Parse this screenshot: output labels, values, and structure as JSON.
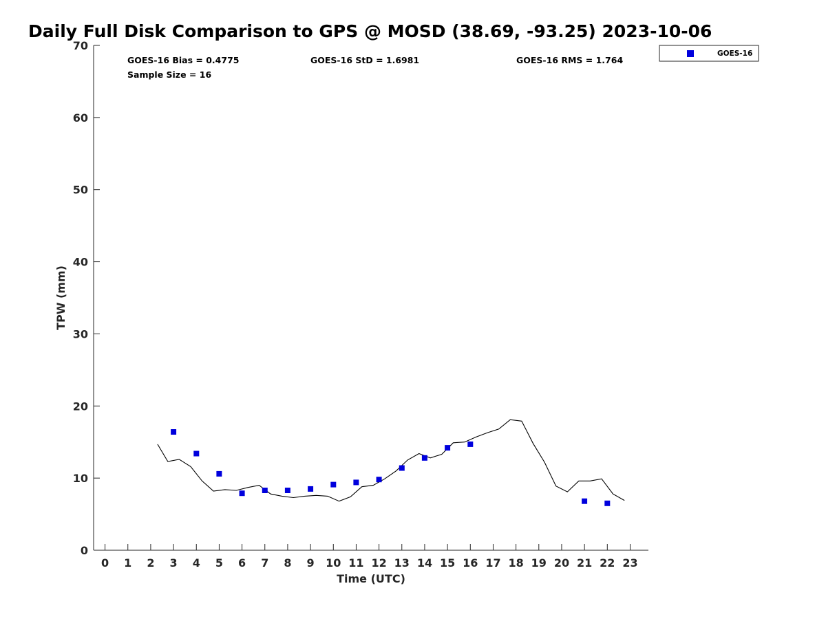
{
  "chart_data": {
    "type": "scatter",
    "title": "Daily Full Disk Comparison to GPS @ MOSD (38.69, -93.25) 2023-10-06",
    "xlabel": "Time (UTC)",
    "ylabel": "TPW (mm)",
    "xlim": [
      -0.5,
      23.8
    ],
    "ylim": [
      0,
      70
    ],
    "x_ticks": [
      0,
      1,
      2,
      3,
      4,
      5,
      6,
      7,
      8,
      9,
      10,
      11,
      12,
      13,
      14,
      15,
      16,
      17,
      18,
      19,
      20,
      21,
      22,
      23
    ],
    "y_ticks": [
      0,
      10,
      20,
      30,
      40,
      50,
      60,
      70
    ],
    "grid": false,
    "legend_position": "top-right",
    "stats": {
      "bias": "GOES-16 Bias = 0.4775",
      "std": "GOES-16 StD = 1.6981",
      "rms": "GOES-16 RMS = 1.764",
      "sample": "Sample Size = 16"
    },
    "series": [
      {
        "name": "GOES-16",
        "kind": "scatter",
        "color": "#0000dd",
        "marker": "square",
        "x": [
          3,
          4,
          5,
          6,
          7,
          8,
          9,
          10,
          11,
          12,
          13,
          14,
          15,
          16,
          21,
          22
        ],
        "y": [
          16.4,
          13.4,
          10.6,
          7.9,
          8.3,
          8.3,
          8.5,
          9.1,
          9.4,
          9.8,
          11.4,
          12.8,
          14.2,
          14.7,
          6.8,
          6.5
        ]
      },
      {
        "kind": "line",
        "color": "#000000",
        "x": [
          2.3,
          2.75,
          3.25,
          3.75,
          4.25,
          4.75,
          5.25,
          5.75,
          6.25,
          6.75,
          7.25,
          7.75,
          8.25,
          8.75,
          9.25,
          9.75,
          10.25,
          10.75,
          11.25,
          11.75,
          12.25,
          12.75,
          13.25,
          13.75,
          14.25,
          14.75,
          15.25,
          15.75,
          16.25,
          16.75,
          17.25,
          17.75,
          18.25,
          18.75,
          19.25,
          19.75,
          20.25,
          20.75,
          21.25,
          21.75,
          22.25,
          22.75
        ],
        "y": [
          14.7,
          12.3,
          12.6,
          11.6,
          9.6,
          8.2,
          8.4,
          8.3,
          8.7,
          9.0,
          7.8,
          7.5,
          7.3,
          7.5,
          7.6,
          7.5,
          6.8,
          7.4,
          8.8,
          9.0,
          9.9,
          11.0,
          12.5,
          13.4,
          12.8,
          13.3,
          14.9,
          15.0,
          15.7,
          16.3,
          16.8,
          18.1,
          17.9,
          14.8,
          12.2,
          8.9,
          8.1,
          9.6,
          9.6,
          9.9,
          7.8,
          6.9
        ]
      }
    ]
  }
}
